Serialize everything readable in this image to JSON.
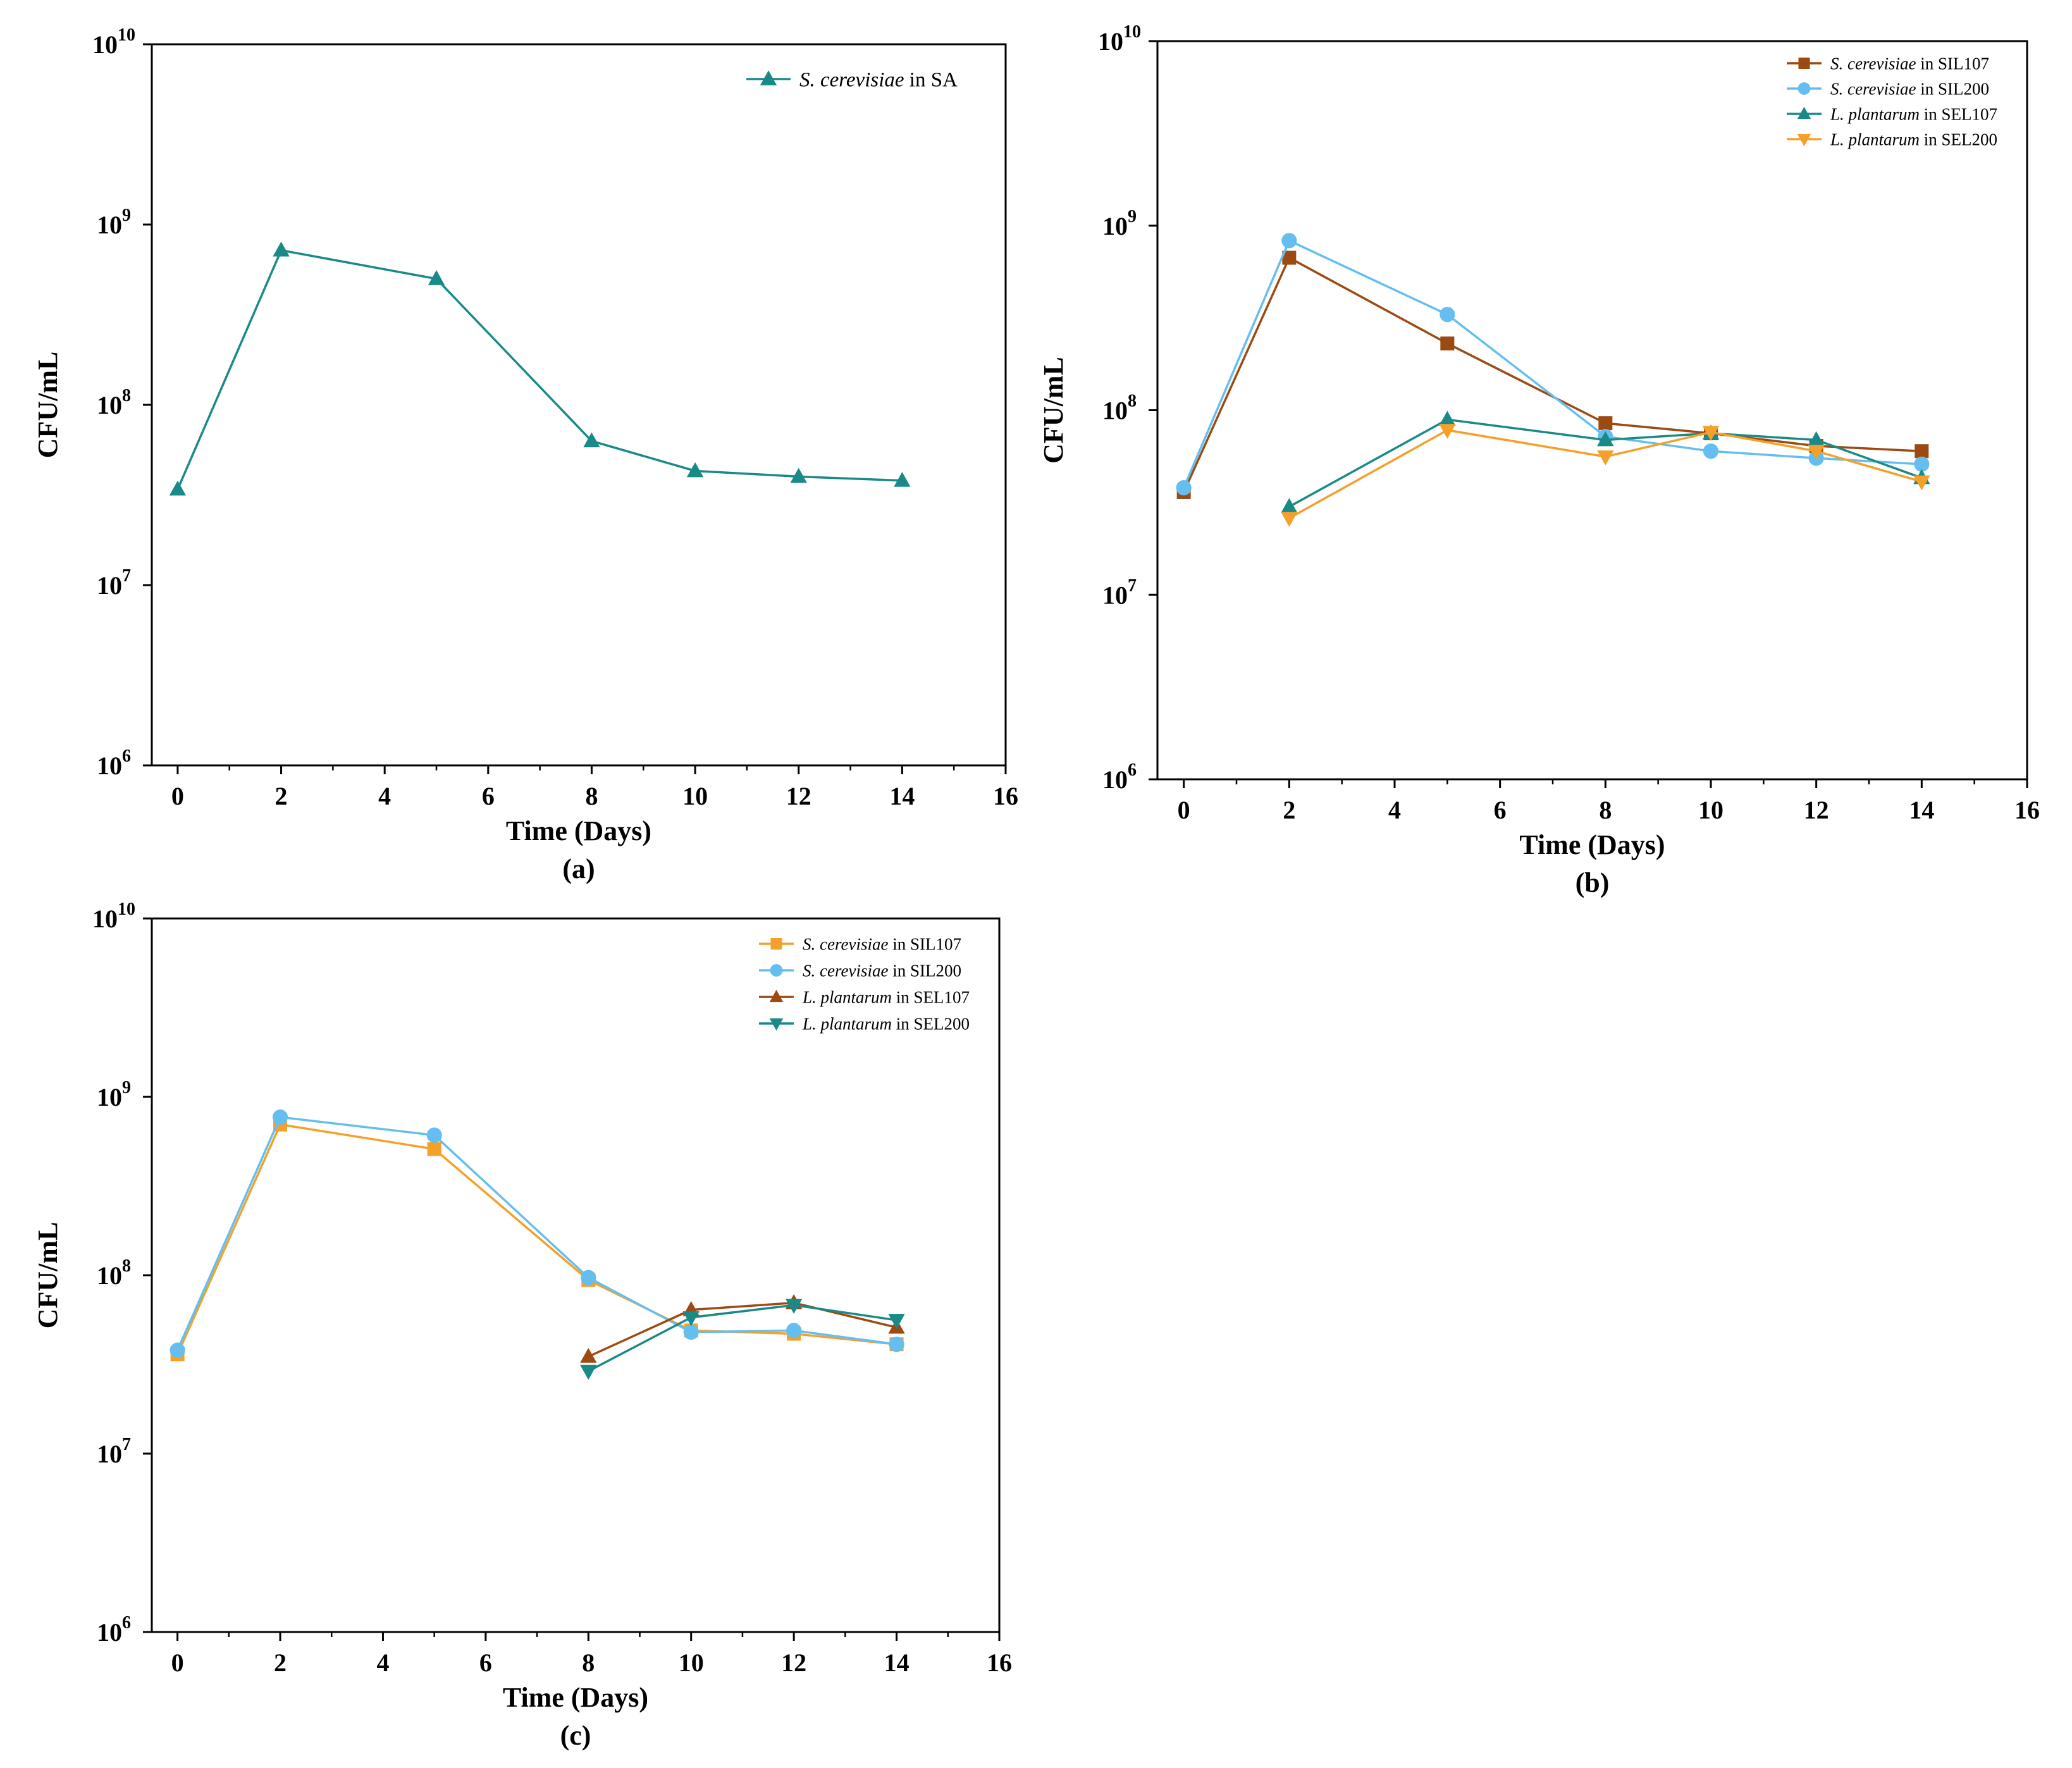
{
  "chart_data": [
    {
      "type": "line",
      "panel_label": "(a)",
      "xlabel": "Time (Days)",
      "ylabel": "CFU/mL",
      "yscale": "log",
      "xlim": [
        -0.5,
        16
      ],
      "ylim": [
        1000000,
        10000000000
      ],
      "xticks": [
        "0",
        "2",
        "4",
        "6",
        "8",
        "10",
        "12",
        "14",
        "16"
      ],
      "yticks": [
        {
          "base": "10",
          "exp": "6"
        },
        {
          "base": "10",
          "exp": "7"
        },
        {
          "base": "10",
          "exp": "8"
        },
        {
          "base": "10",
          "exp": "9"
        },
        {
          "base": "10",
          "exp": "10"
        }
      ],
      "legend_position": "top-right",
      "series": [
        {
          "name_italic": "S. cerevisiae",
          "name_rest": " in SA",
          "color": "#1a8a88",
          "marker": "triangle-up",
          "x": [
            0,
            2,
            5,
            8,
            10,
            12,
            14
          ],
          "values": [
            34000000,
            720000000,
            500000000,
            63000000,
            43000000,
            40000000,
            38000000
          ]
        }
      ]
    },
    {
      "type": "line",
      "panel_label": "(b)",
      "xlabel": "Time (Days)",
      "ylabel": "CFU/mL",
      "yscale": "log",
      "xlim": [
        -0.5,
        16
      ],
      "ylim": [
        1000000,
        10000000000
      ],
      "xticks": [
        "0",
        "2",
        "4",
        "6",
        "8",
        "10",
        "12",
        "14",
        "16"
      ],
      "yticks": [
        {
          "base": "10",
          "exp": "6"
        },
        {
          "base": "10",
          "exp": "7"
        },
        {
          "base": "10",
          "exp": "8"
        },
        {
          "base": "10",
          "exp": "9"
        },
        {
          "base": "10",
          "exp": "10"
        }
      ],
      "legend_position": "top-right",
      "series": [
        {
          "name_italic": "S. cerevisiae",
          "name_rest": " in SIL107",
          "color": "#9c4a12",
          "marker": "square",
          "x": [
            0,
            2,
            5,
            8,
            10,
            12,
            14
          ],
          "values": [
            36000000,
            670000000,
            230000000,
            85000000,
            75000000,
            64000000,
            60000000
          ]
        },
        {
          "name_italic": "S. cerevisiae",
          "name_rest": " in SIL200",
          "color": "#64bff0",
          "marker": "circle",
          "x": [
            0,
            2,
            5,
            8,
            10,
            12,
            14
          ],
          "values": [
            38000000,
            830000000,
            330000000,
            72000000,
            60000000,
            55000000,
            51000000
          ]
        },
        {
          "name_italic": "L. plantarum",
          "name_rest": " in SEL107",
          "color": "#1a8a88",
          "marker": "triangle-up",
          "x": [
            2,
            5,
            8,
            10,
            12,
            14
          ],
          "values": [
            30000000,
            89000000,
            69000000,
            75000000,
            69000000,
            43000000
          ]
        },
        {
          "name_italic": "L. plantarum",
          "name_rest": " in SEL200",
          "color": "#f5a02a",
          "marker": "triangle-down",
          "x": [
            2,
            5,
            8,
            10,
            12,
            14
          ],
          "values": [
            26000000,
            78000000,
            56000000,
            76000000,
            60000000,
            41000000
          ]
        }
      ]
    },
    {
      "type": "line",
      "panel_label": "(c)",
      "xlabel": "Time (Days)",
      "ylabel": "CFU/mL",
      "yscale": "log",
      "xlim": [
        -0.5,
        16
      ],
      "ylim": [
        1000000,
        10000000000
      ],
      "xticks": [
        "0",
        "2",
        "4",
        "6",
        "8",
        "10",
        "12",
        "14",
        "16"
      ],
      "yticks": [
        {
          "base": "10",
          "exp": "6"
        },
        {
          "base": "10",
          "exp": "7"
        },
        {
          "base": "10",
          "exp": "8"
        },
        {
          "base": "10",
          "exp": "9"
        },
        {
          "base": "10",
          "exp": "10"
        }
      ],
      "legend_position": "top-right",
      "series": [
        {
          "name_italic": "S. cerevisiae",
          "name_rest": " in SIL107",
          "color": "#f5a02a",
          "marker": "square",
          "x": [
            0,
            2,
            5,
            8,
            10,
            12,
            14
          ],
          "values": [
            36000000,
            700000000,
            510000000,
            94000000,
            49000000,
            47000000,
            41000000
          ]
        },
        {
          "name_italic": "S. cerevisiae",
          "name_rest": " in SIL200",
          "color": "#64bff0",
          "marker": "circle",
          "x": [
            0,
            2,
            5,
            8,
            10,
            12,
            14
          ],
          "values": [
            38000000,
            770000000,
            610000000,
            97000000,
            48000000,
            49000000,
            41000000
          ]
        },
        {
          "name_italic": "L. plantarum",
          "name_rest": " in SEL107",
          "color": "#9c4a12",
          "marker": "triangle-up",
          "x": [
            8,
            10,
            12,
            14
          ],
          "values": [
            35000000,
            64000000,
            70000000,
            51000000
          ]
        },
        {
          "name_italic": "L. plantarum",
          "name_rest": " in SEL200",
          "color": "#1a8a88",
          "marker": "triangle-down",
          "x": [
            8,
            10,
            12,
            14
          ],
          "values": [
            29000000,
            58000000,
            68000000,
            56000000
          ]
        }
      ]
    }
  ]
}
